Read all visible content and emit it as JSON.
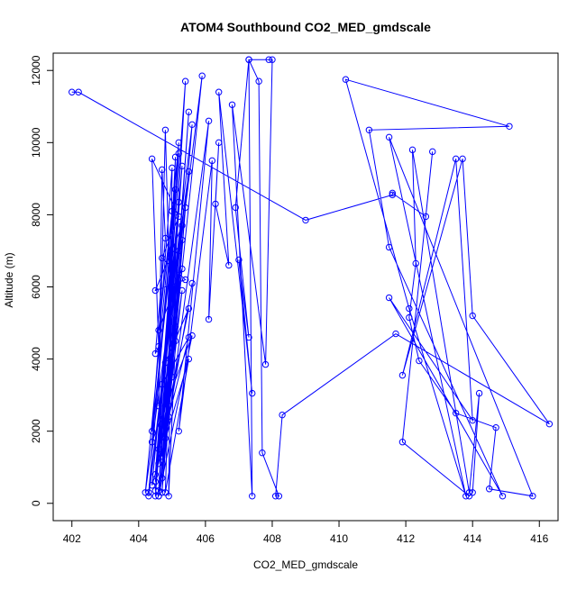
{
  "chart_data": {
    "type": "scatter",
    "title": "ATOM4 Southbound CO2_MED_gmdscale",
    "xlabel": "CO2_MED_gmdscale",
    "ylabel": "Altitude (m)",
    "xlim": [
      402,
      416
    ],
    "ylim": [
      0,
      12000
    ],
    "xticks": [
      402,
      404,
      406,
      408,
      410,
      412,
      414,
      416
    ],
    "yticks": [
      0,
      2000,
      4000,
      6000,
      8000,
      10000,
      12000
    ],
    "grid": false,
    "legend": null,
    "point_style": "open-circle",
    "connected": true,
    "colors": {
      "series": "#0000ff",
      "axis": "#000000",
      "background": "#ffffff"
    },
    "series": [
      {
        "values": [
          [
            402.0,
            11400
          ],
          [
            402.2,
            11400
          ],
          [
            409.0,
            7850
          ],
          [
            411.6,
            8550
          ],
          [
            411.6,
            8600
          ],
          [
            412.6,
            7950
          ],
          [
            412.8,
            9750
          ],
          [
            411.9,
            1700
          ],
          [
            413.9,
            200
          ],
          [
            414.0,
            300
          ],
          [
            414.2,
            3050
          ],
          [
            413.9,
            300
          ],
          [
            412.2,
            9800
          ],
          [
            412.3,
            6650
          ],
          [
            412.1,
            5150
          ],
          [
            412.4,
            3950
          ],
          [
            413.5,
            2500
          ],
          [
            414.7,
            2100
          ],
          [
            414.5,
            400
          ],
          [
            415.8,
            200
          ],
          [
            411.5,
            10150
          ],
          [
            413.8,
            200
          ],
          [
            412.1,
            5400
          ],
          [
            410.2,
            11750
          ],
          [
            415.1,
            10450
          ],
          [
            410.9,
            10350
          ],
          [
            411.5,
            7100
          ],
          [
            414.9,
            200
          ],
          [
            411.5,
            5700
          ],
          [
            414.0,
            2300
          ],
          [
            413.5,
            9550
          ],
          [
            411.9,
            3550
          ],
          [
            413.7,
            9550
          ],
          [
            414.0,
            5200
          ],
          [
            416.3,
            2200
          ],
          [
            411.7,
            4700
          ],
          [
            408.3,
            2450
          ],
          [
            408.1,
            200
          ],
          [
            408.2,
            200
          ],
          [
            407.7,
            1400
          ],
          [
            407.6,
            11700
          ],
          [
            407.3,
            12300
          ],
          [
            407.9,
            12300
          ],
          [
            408.0,
            12300
          ],
          [
            407.8,
            3850
          ],
          [
            406.8,
            11050
          ],
          [
            407.4,
            200
          ],
          [
            407.3,
            12300
          ],
          [
            406.9,
            8200
          ],
          [
            407.3,
            4600
          ],
          [
            407.0,
            6750
          ],
          [
            407.4,
            3050
          ],
          [
            406.4,
            11400
          ],
          [
            406.7,
            6600
          ],
          [
            406.3,
            8300
          ],
          [
            406.4,
            10000
          ],
          [
            406.1,
            5100
          ],
          [
            406.2,
            9500
          ],
          [
            405.2,
            2000
          ],
          [
            406.1,
            10600
          ],
          [
            404.6,
            200
          ],
          [
            405.9,
            11850
          ],
          [
            404.3,
            200
          ],
          [
            405.6,
            10500
          ],
          [
            404.7,
            300
          ],
          [
            405.5,
            10850
          ],
          [
            404.7,
            700
          ],
          [
            405.4,
            11700
          ],
          [
            404.5,
            350
          ],
          [
            405.2,
            9700
          ],
          [
            404.3,
            300
          ],
          [
            405.5,
            9200
          ],
          [
            404.2,
            300
          ],
          [
            405.2,
            10000
          ],
          [
            404.5,
            200
          ],
          [
            405.3,
            9350
          ],
          [
            404.6,
            350
          ],
          [
            405.1,
            8700
          ],
          [
            404.4,
            1700
          ],
          [
            405.6,
            4650
          ],
          [
            404.6,
            200
          ],
          [
            405.1,
            9600
          ],
          [
            404.8,
            300
          ],
          [
            405.5,
            4000
          ],
          [
            404.4,
            500
          ],
          [
            405.2,
            8350
          ],
          [
            404.5,
            800
          ],
          [
            405.0,
            7050
          ],
          [
            404.4,
            2000
          ],
          [
            405.0,
            9300
          ],
          [
            404.9,
            200
          ],
          [
            405.1,
            4500
          ],
          [
            404.6,
            1500
          ],
          [
            405.3,
            7700
          ],
          [
            404.5,
            5900
          ],
          [
            405.4,
            6200
          ],
          [
            404.7,
            6800
          ],
          [
            405.2,
            7950
          ],
          [
            404.4,
            9550
          ],
          [
            404.6,
            4350
          ],
          [
            404.5,
            4150
          ],
          [
            404.8,
            7350
          ],
          [
            404.7,
            9250
          ],
          [
            404.6,
            2700
          ],
          [
            404.8,
            10350
          ],
          [
            405.0,
            3500
          ],
          [
            404.6,
            1100
          ],
          [
            405.3,
            5900
          ],
          [
            404.8,
            1800
          ],
          [
            405.4,
            8200
          ],
          [
            404.9,
            2400
          ],
          [
            405.5,
            4600
          ],
          [
            404.7,
            3300
          ],
          [
            405.2,
            7000
          ],
          [
            404.9,
            2700
          ],
          [
            405.5,
            5400
          ],
          [
            404.8,
            3900
          ],
          [
            405.0,
            8100
          ],
          [
            404.6,
            4800
          ],
          [
            405.3,
            6500
          ],
          [
            404.7,
            2200
          ],
          [
            405.1,
            4900
          ],
          [
            404.5,
            600
          ],
          [
            405.3,
            7300
          ],
          [
            404.7,
            1300
          ],
          [
            405.6,
            6100
          ]
        ]
      }
    ]
  }
}
